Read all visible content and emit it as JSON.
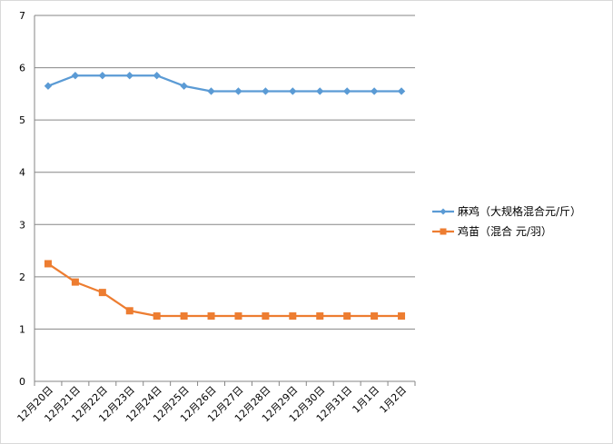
{
  "chart_data": {
    "type": "line",
    "title": "",
    "xlabel": "",
    "ylabel": "",
    "categories": [
      "12月20日",
      "12月21日",
      "12月22日",
      "12月23日",
      "12月24日",
      "12月25日",
      "12月26日",
      "12月27日",
      "12月28日",
      "12月29日",
      "12月30日",
      "12月31日",
      "1月1日",
      "1月2日"
    ],
    "ylim": [
      0,
      7
    ],
    "yticks": [
      "0",
      "1",
      "2",
      "3",
      "4",
      "5",
      "6",
      "7"
    ],
    "grid": "horizontal",
    "legend_position": "right",
    "series": [
      {
        "name": "麻鸡（大规格混合元/斤）",
        "color": "#5b9bd5",
        "marker": "diamond",
        "values": [
          5.65,
          5.85,
          5.85,
          5.85,
          5.85,
          5.65,
          5.55,
          5.55,
          5.55,
          5.55,
          5.55,
          5.55,
          5.55,
          5.55
        ]
      },
      {
        "name": "鸡苗（混合 元/羽）",
        "color": "#ed7d31",
        "marker": "square",
        "values": [
          2.25,
          1.9,
          1.7,
          1.35,
          1.25,
          1.25,
          1.25,
          1.25,
          1.25,
          1.25,
          1.25,
          1.25,
          1.25,
          1.25
        ]
      }
    ]
  }
}
